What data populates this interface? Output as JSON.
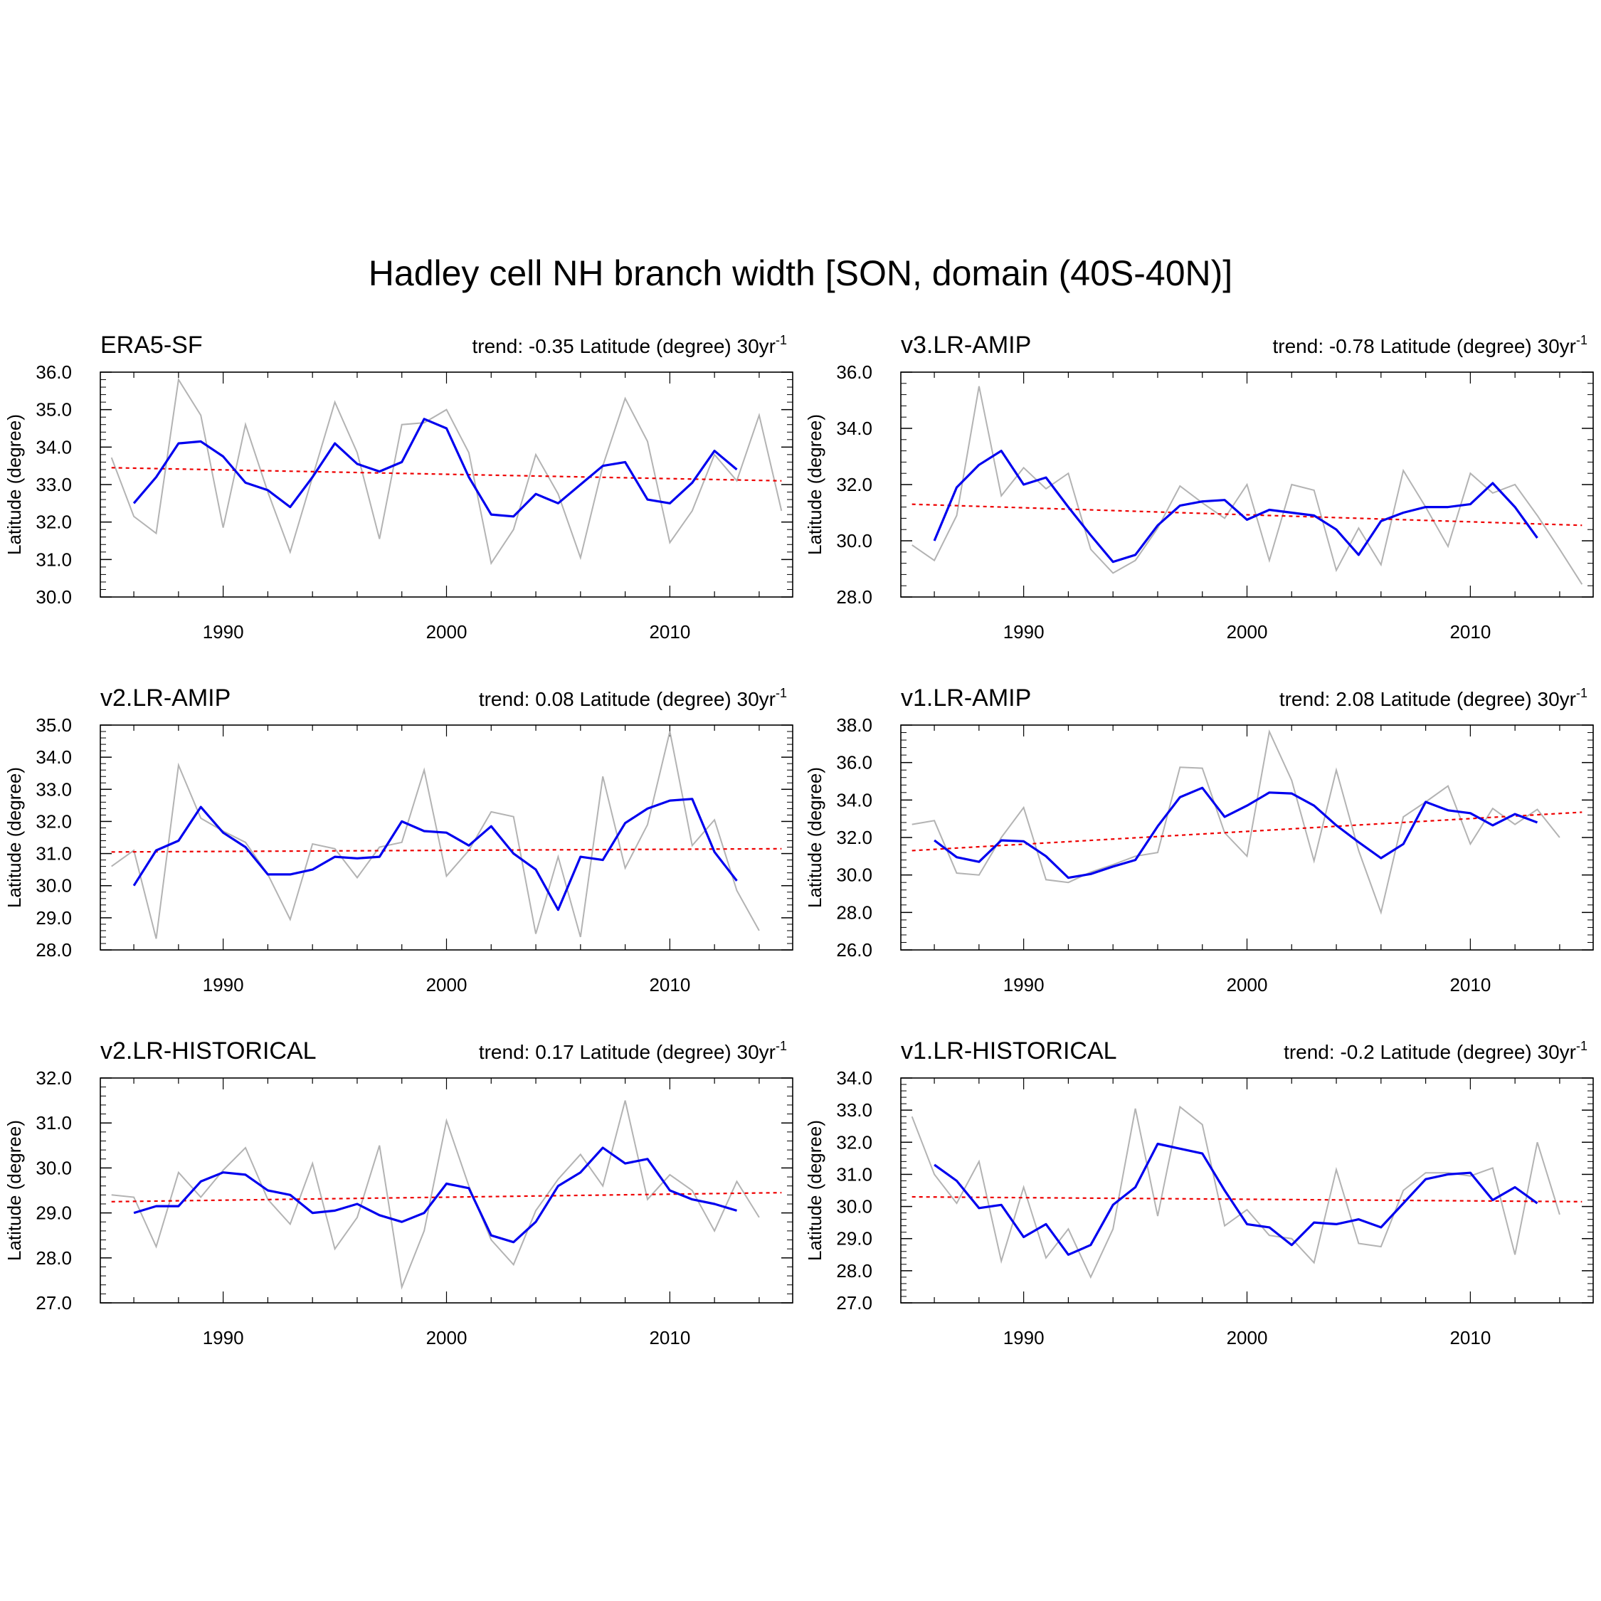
{
  "title": "Hadley cell NH branch width [SON, domain (40S-40N)]",
  "chart_data": [
    {
      "type": "line",
      "panel_title": "ERA5-SF",
      "trend_text": "trend: -0.35 Latitude (degree) 30yr",
      "trend_unit_exp": "-1",
      "ylabel": "Latitude (degree)",
      "xlim": [
        1984.5,
        2015.5
      ],
      "ylim": [
        30.0,
        36.0
      ],
      "yticks": [
        "30.0",
        "31.0",
        "32.0",
        "33.0",
        "34.0",
        "35.0",
        "36.0"
      ],
      "xticks": [
        1990,
        2000,
        2010
      ],
      "annual": {
        "x_start": 1985,
        "values": [
          33.72,
          32.15,
          31.7,
          35.8,
          34.85,
          31.85,
          34.6,
          32.8,
          31.2,
          33.2,
          35.2,
          33.85,
          31.55,
          34.6,
          34.65,
          35.0,
          33.85,
          30.9,
          31.8,
          33.8,
          32.75,
          31.05,
          33.5,
          35.3,
          34.15,
          31.45,
          32.3,
          33.8,
          33.1,
          34.85,
          32.3
        ]
      },
      "smoothed": {
        "x_start": 1986,
        "values": [
          32.5,
          33.2,
          34.1,
          34.15,
          33.75,
          33.05,
          32.85,
          32.4,
          33.2,
          34.1,
          33.55,
          33.35,
          33.6,
          34.75,
          34.5,
          33.2,
          32.2,
          32.15,
          32.75,
          32.5,
          33.0,
          33.5,
          33.6,
          32.6,
          32.5,
          33.05,
          33.9,
          33.4
        ]
      },
      "trend_line": {
        "x": [
          1985,
          2015
        ],
        "y": [
          33.45,
          33.1
        ]
      }
    },
    {
      "type": "line",
      "panel_title": "v3.LR-AMIP",
      "trend_text": "trend: -0.78 Latitude (degree) 30yr",
      "trend_unit_exp": "-1",
      "ylabel": "Latitude (degree)",
      "xlim": [
        1984.5,
        2015.5
      ],
      "ylim": [
        28.0,
        36.0
      ],
      "yticks": [
        "28.0",
        "30.0",
        "32.0",
        "34.0",
        "36.0"
      ],
      "xticks": [
        1990,
        2000,
        2010
      ],
      "annual": {
        "x_start": 1985,
        "values": [
          29.85,
          29.3,
          30.9,
          35.5,
          31.6,
          32.6,
          31.85,
          32.4,
          29.7,
          28.85,
          29.3,
          30.45,
          31.95,
          31.35,
          30.8,
          32.0,
          29.3,
          32.0,
          31.8,
          28.95,
          30.45,
          29.15,
          32.5,
          31.2,
          29.8,
          32.4,
          31.7,
          32.0,
          30.9,
          29.7,
          28.45
        ]
      },
      "smoothed": {
        "x_start": 1986,
        "values": [
          30.0,
          31.9,
          32.7,
          33.2,
          32.0,
          32.25,
          31.2,
          30.2,
          29.25,
          29.5,
          30.55,
          31.25,
          31.4,
          31.45,
          30.75,
          31.1,
          31.0,
          30.9,
          30.4,
          29.5,
          30.7,
          31.0,
          31.2,
          31.2,
          31.3,
          32.05,
          31.2,
          30.1
        ]
      },
      "trend_line": {
        "x": [
          1985,
          2015
        ],
        "y": [
          31.3,
          30.55
        ]
      }
    },
    {
      "type": "line",
      "panel_title": "v2.LR-AMIP",
      "trend_text": "trend: 0.08 Latitude (degree) 30yr",
      "trend_unit_exp": "-1",
      "ylabel": "Latitude (degree)",
      "xlim": [
        1984.5,
        2015.5
      ],
      "ylim": [
        28.0,
        35.0
      ],
      "yticks": [
        "28.0",
        "29.0",
        "30.0",
        "31.0",
        "32.0",
        "33.0",
        "34.0",
        "35.0"
      ],
      "xticks": [
        1990,
        2000,
        2010
      ],
      "annual": {
        "x_start": 1985,
        "values": [
          30.6,
          31.1,
          28.35,
          33.75,
          32.1,
          31.7,
          31.35,
          30.35,
          28.95,
          31.3,
          31.15,
          30.25,
          31.2,
          31.35,
          33.6,
          30.3,
          31.1,
          32.3,
          32.15,
          28.5,
          30.9,
          28.4,
          33.4,
          30.55,
          31.9,
          34.8,
          31.25,
          32.05,
          29.85,
          28.6
        ]
      },
      "smoothed": {
        "x_start": 1986,
        "values": [
          30.0,
          31.1,
          31.4,
          32.45,
          31.65,
          31.2,
          30.35,
          30.35,
          30.5,
          30.9,
          30.85,
          30.9,
          32.0,
          31.7,
          31.65,
          31.25,
          31.85,
          31.0,
          30.5,
          29.25,
          30.9,
          30.8,
          31.95,
          32.4,
          32.65,
          32.7,
          31.05,
          30.15
        ]
      },
      "trend_line": {
        "x": [
          1985,
          2015
        ],
        "y": [
          31.05,
          31.15
        ]
      }
    },
    {
      "type": "line",
      "panel_title": "v1.LR-AMIP",
      "trend_text": "trend: 2.08 Latitude (degree) 30yr",
      "trend_unit_exp": "-1",
      "ylabel": "Latitude (degree)",
      "xlim": [
        1984.5,
        2015.5
      ],
      "ylim": [
        26.0,
        38.0
      ],
      "yticks": [
        "26.0",
        "28.0",
        "30.0",
        "32.0",
        "34.0",
        "36.0",
        "38.0"
      ],
      "xticks": [
        1990,
        2000,
        2010
      ],
      "annual": {
        "x_start": 1985,
        "values": [
          32.7,
          32.9,
          30.1,
          30.0,
          32.0,
          33.6,
          29.75,
          29.6,
          30.15,
          30.55,
          31.0,
          31.2,
          35.75,
          35.7,
          32.25,
          31.0,
          37.65,
          35.05,
          30.75,
          35.6,
          31.3,
          28.0,
          33.1,
          33.9,
          34.75,
          31.65,
          33.55,
          32.7,
          33.5,
          32.0
        ]
      },
      "smoothed": {
        "x_start": 1986,
        "values": [
          31.85,
          30.95,
          30.7,
          31.85,
          31.8,
          31.0,
          29.85,
          30.05,
          30.45,
          30.8,
          32.6,
          34.15,
          34.65,
          33.1,
          33.7,
          34.4,
          34.35,
          33.7,
          32.65,
          31.75,
          30.9,
          31.65,
          33.9,
          33.45,
          33.3,
          32.65,
          33.25,
          32.8
        ]
      },
      "trend_line": {
        "x": [
          1985,
          2015
        ],
        "y": [
          31.3,
          33.35
        ]
      }
    },
    {
      "type": "line",
      "panel_title": "v2.LR-HISTORICAL",
      "trend_text": "trend: 0.17 Latitude (degree) 30yr",
      "trend_unit_exp": "-1",
      "ylabel": "Latitude (degree)",
      "xlim": [
        1984.5,
        2015.5
      ],
      "ylim": [
        27.0,
        32.0
      ],
      "yticks": [
        "27.0",
        "28.0",
        "29.0",
        "30.0",
        "31.0",
        "32.0"
      ],
      "xticks": [
        1990,
        2000,
        2010
      ],
      "annual": {
        "x_start": 1985,
        "values": [
          29.4,
          29.35,
          28.25,
          29.9,
          29.35,
          29.95,
          30.45,
          29.3,
          28.75,
          30.1,
          28.2,
          28.9,
          30.5,
          27.35,
          28.6,
          31.05,
          29.6,
          28.4,
          27.85,
          29.05,
          29.75,
          30.3,
          29.6,
          31.5,
          29.3,
          29.85,
          29.5,
          28.6,
          29.7,
          28.9
        ]
      },
      "smoothed": {
        "x_start": 1986,
        "values": [
          29.0,
          29.15,
          29.15,
          29.7,
          29.9,
          29.85,
          29.5,
          29.4,
          29.0,
          29.05,
          29.2,
          28.95,
          28.8,
          29.0,
          29.65,
          29.55,
          28.5,
          28.35,
          28.8,
          29.6,
          29.9,
          30.45,
          30.1,
          30.2,
          29.5,
          29.3,
          29.2,
          29.05
        ]
      },
      "trend_line": {
        "x": [
          1985,
          2015
        ],
        "y": [
          29.25,
          29.45
        ]
      }
    },
    {
      "type": "line",
      "panel_title": "v1.LR-HISTORICAL",
      "trend_text": "trend: -0.2 Latitude (degree) 30yr",
      "trend_unit_exp": "-1",
      "ylabel": "Latitude (degree)",
      "xlim": [
        1984.5,
        2015.5
      ],
      "ylim": [
        27.0,
        34.0
      ],
      "yticks": [
        "27.0",
        "28.0",
        "29.0",
        "30.0",
        "31.0",
        "32.0",
        "33.0",
        "34.0"
      ],
      "xticks": [
        1990,
        2000,
        2010
      ],
      "annual": {
        "x_start": 1985,
        "values": [
          32.8,
          31.0,
          30.1,
          31.4,
          28.3,
          30.6,
          28.4,
          29.3,
          27.8,
          29.3,
          33.05,
          29.7,
          33.1,
          32.55,
          29.4,
          29.9,
          29.1,
          29.0,
          28.25,
          31.15,
          28.85,
          28.75,
          30.5,
          31.05,
          31.05,
          30.95,
          31.2,
          28.5,
          32.0,
          29.75
        ]
      },
      "smoothed": {
        "x_start": 1986,
        "values": [
          31.3,
          30.8,
          29.95,
          30.05,
          29.05,
          29.45,
          28.5,
          28.8,
          30.05,
          30.6,
          31.95,
          31.8,
          31.65,
          30.5,
          29.45,
          29.35,
          28.8,
          29.5,
          29.45,
          29.6,
          29.35,
          30.1,
          30.85,
          31.0,
          31.05,
          30.2,
          30.6,
          30.1
        ]
      },
      "trend_line": {
        "x": [
          1985,
          2015
        ],
        "y": [
          30.3,
          30.15
        ]
      }
    }
  ]
}
